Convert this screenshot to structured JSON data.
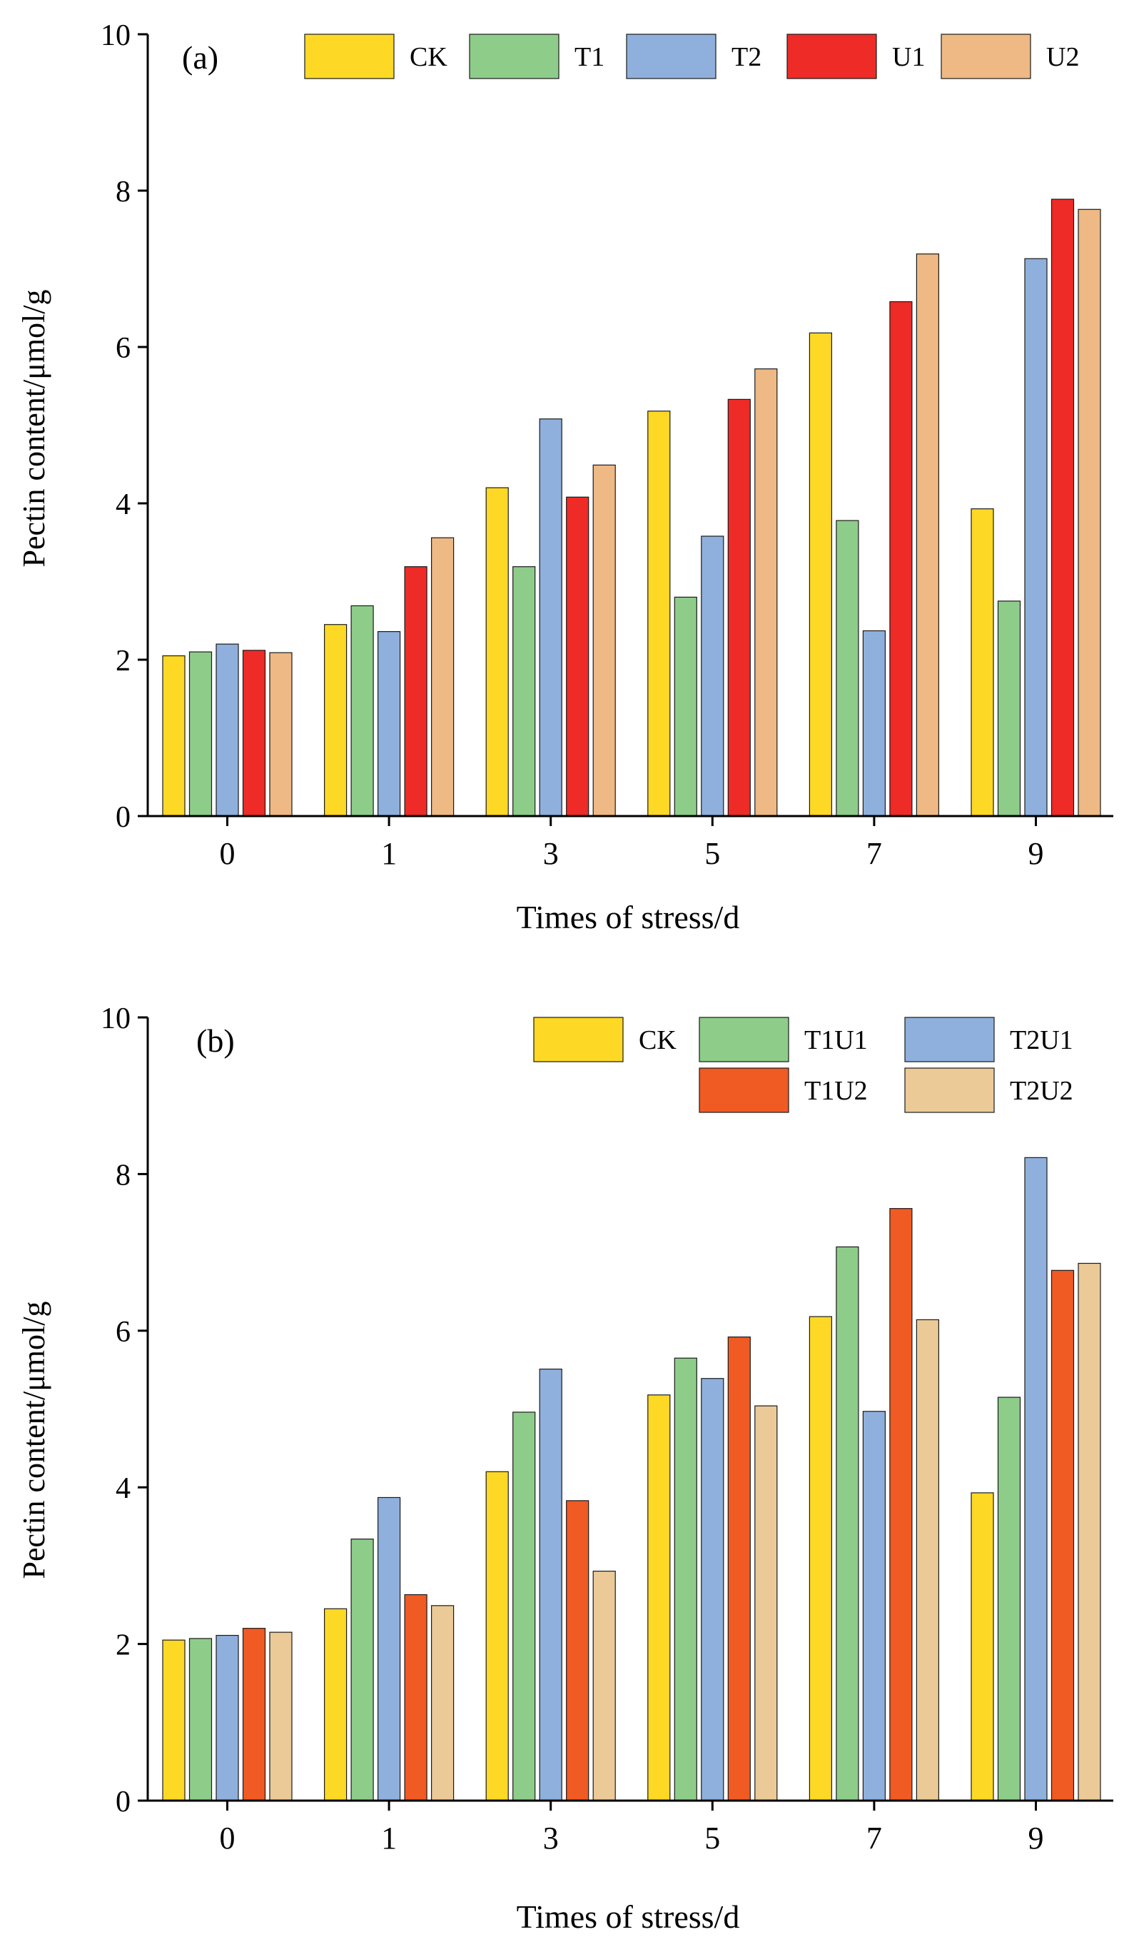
{
  "chart_data": [
    {
      "panel_label": "(a)",
      "type": "bar",
      "categories": [
        "0",
        "1",
        "3",
        "5",
        "7",
        "9"
      ],
      "series": [
        {
          "name": "CK",
          "color": "#FDD825",
          "values": [
            2.05,
            2.45,
            4.2,
            5.18,
            6.18,
            3.93
          ]
        },
        {
          "name": "T1",
          "color": "#8ECC8A",
          "values": [
            2.1,
            2.69,
            3.19,
            2.8,
            3.78,
            2.75
          ]
        },
        {
          "name": "T2",
          "color": "#8FB0DC",
          "values": [
            2.2,
            2.36,
            5.08,
            3.58,
            2.37,
            7.13
          ]
        },
        {
          "name": "U1",
          "color": "#EE2B27",
          "values": [
            2.12,
            3.19,
            4.08,
            5.33,
            6.58,
            7.89
          ]
        },
        {
          "name": "U2",
          "color": "#EEB984",
          "values": [
            2.09,
            3.56,
            4.49,
            5.72,
            7.19,
            7.76
          ]
        }
      ],
      "xlabel": "Times of stress/d",
      "ylabel": "Pectin content/μmol/g",
      "ylim": [
        0,
        10
      ],
      "yticks": [
        "0",
        "2",
        "4",
        "6",
        "8",
        "10"
      ],
      "grid": false,
      "legend_position": "top"
    },
    {
      "panel_label": "(b)",
      "type": "bar",
      "categories": [
        "0",
        "1",
        "3",
        "5",
        "7",
        "9"
      ],
      "series": [
        {
          "name": "CK",
          "color": "#FDD825",
          "values": [
            2.05,
            2.45,
            4.2,
            5.18,
            6.18,
            3.93
          ]
        },
        {
          "name": "T1U1",
          "color": "#8ECC8A",
          "values": [
            2.07,
            3.34,
            4.96,
            5.65,
            7.07,
            5.15
          ]
        },
        {
          "name": "T2U1",
          "color": "#8FB0DC",
          "values": [
            2.11,
            3.87,
            5.51,
            5.39,
            4.97,
            8.21
          ]
        },
        {
          "name": "T1U2",
          "color": "#F05A23",
          "values": [
            2.2,
            2.63,
            3.83,
            5.92,
            7.56,
            6.77
          ]
        },
        {
          "name": "T2U2",
          "color": "#EBCA98",
          "values": [
            2.15,
            2.49,
            2.93,
            5.04,
            6.14,
            6.86
          ]
        }
      ],
      "xlabel": "Times of stress/d",
      "ylabel": "Pectin content/μmol/g",
      "ylim": [
        0,
        10
      ],
      "yticks": [
        "0",
        "2",
        "4",
        "6",
        "8",
        "10"
      ],
      "grid": false,
      "legend_position": "top-right"
    }
  ]
}
